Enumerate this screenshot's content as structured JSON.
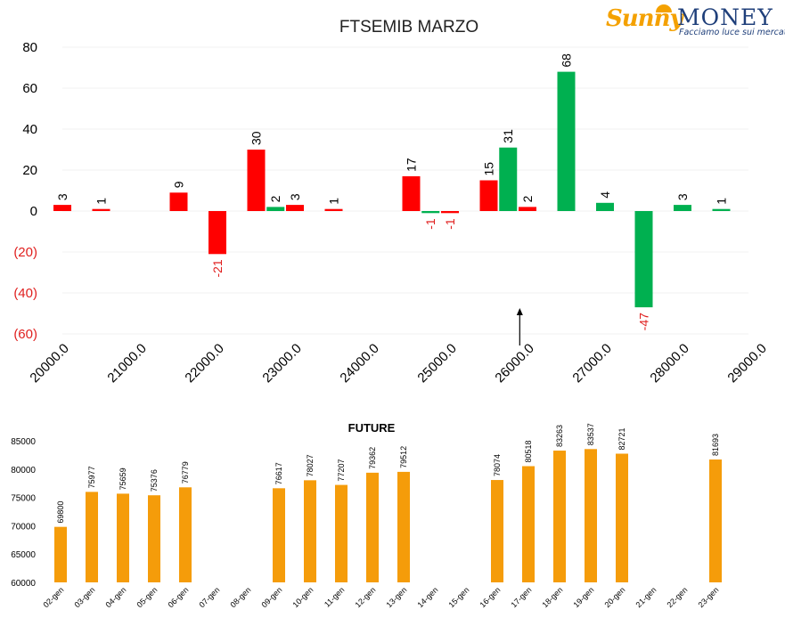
{
  "logo": {
    "brand1": "Sunny",
    "brand2": "MONEY",
    "tagline": "Facciamo luce sui mercati"
  },
  "colors": {
    "positive_label": "#000000",
    "negative_label": "#e0201f",
    "red": "#ff0000",
    "green": "#00b050",
    "orange": "#f59c0a"
  },
  "chart_data": [
    {
      "type": "bar",
      "title": "FTSEMIB MARZO",
      "xlabel": "",
      "ylabel": "",
      "ylim": [
        -60,
        80
      ],
      "y_ticks": [
        "80",
        "60",
        "40",
        "20",
        "0",
        "(20)",
        "(40)",
        "(60)"
      ],
      "x_ticks": [
        "20000.0",
        "21000.0",
        "22000.0",
        "23000.0",
        "24000.0",
        "25000.0",
        "26000.0",
        "27000.0",
        "28000.0",
        "29000.0"
      ],
      "grid": true,
      "bars": [
        {
          "strike": 20000,
          "value": 3,
          "color": "red"
        },
        {
          "strike": 20500,
          "value": 1,
          "color": "red"
        },
        {
          "strike": 21500,
          "value": 9,
          "color": "red"
        },
        {
          "strike": 22000,
          "value": -21,
          "color": "red"
        },
        {
          "strike": 22500,
          "value": 30,
          "color": "red"
        },
        {
          "strike": 22750,
          "value": 2,
          "color": "green"
        },
        {
          "strike": 23000,
          "value": 3,
          "color": "red"
        },
        {
          "strike": 23500,
          "value": 1,
          "color": "red"
        },
        {
          "strike": 24500,
          "value": 17,
          "color": "red"
        },
        {
          "strike": 24750,
          "value": -1,
          "color": "green"
        },
        {
          "strike": 25000,
          "value": -1,
          "color": "red"
        },
        {
          "strike": 25500,
          "value": 15,
          "color": "red"
        },
        {
          "strike": 25750,
          "value": 31,
          "color": "green"
        },
        {
          "strike": 26000,
          "value": 2,
          "color": "red"
        },
        {
          "strike": 26500,
          "value": 68,
          "color": "green"
        },
        {
          "strike": 27000,
          "value": 4,
          "color": "green"
        },
        {
          "strike": 27500,
          "value": -47,
          "color": "green"
        },
        {
          "strike": 28000,
          "value": 3,
          "color": "green"
        },
        {
          "strike": 28500,
          "value": 1,
          "color": "green"
        }
      ],
      "arrow_at": 25900
    },
    {
      "type": "bar",
      "title": "FUTURE",
      "xlabel": "",
      "ylabel": "",
      "ylim": [
        60000,
        85000
      ],
      "y_ticks": [
        "85000",
        "80000",
        "75000",
        "70000",
        "65000",
        "60000"
      ],
      "categories": [
        "02-gen",
        "03-gen",
        "04-gen",
        "05-gen",
        "06-gen",
        "07-gen",
        "08-gen",
        "09-gen",
        "10-gen",
        "11-gen",
        "12-gen",
        "13-gen",
        "14-gen",
        "15-gen",
        "16-gen",
        "17-gen",
        "18-gen",
        "19-gen",
        "20-gen",
        "21-gen",
        "22-gen",
        "23-gen"
      ],
      "values": [
        69800,
        75977,
        75659,
        75376,
        76779,
        null,
        null,
        76617,
        78027,
        77207,
        79362,
        79512,
        null,
        null,
        78074,
        80518,
        83263,
        83537,
        82721,
        null,
        null,
        81693
      ]
    }
  ]
}
